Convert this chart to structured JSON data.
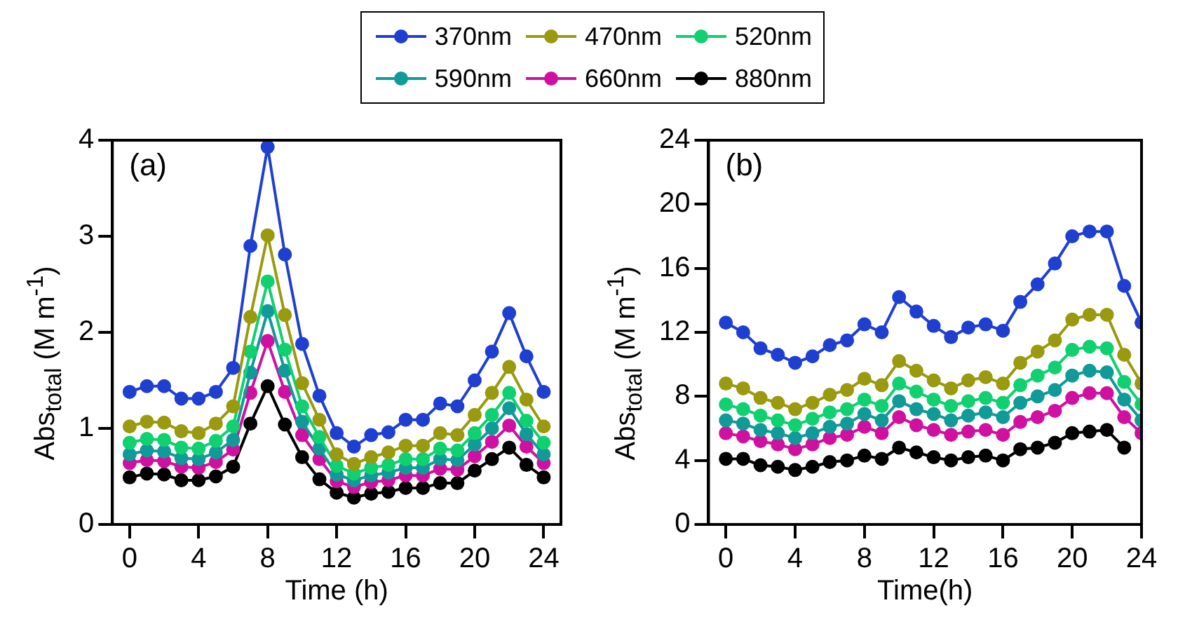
{
  "chart_data": [
    {
      "type": "line",
      "xlabel": "Time (h)",
      "ylabel": "Abs$_{total}$ (M m$^{-1}$)",
      "annotations": [
        "(a)"
      ],
      "x": [
        0,
        1,
        2,
        3,
        4,
        5,
        6,
        7,
        8,
        9,
        10,
        11,
        12,
        13,
        14,
        15,
        16,
        17,
        18,
        19,
        20,
        21,
        22,
        23,
        24
      ],
      "xlim": [
        -1,
        25
      ],
      "xticks": [
        0,
        4,
        8,
        12,
        16,
        20,
        24
      ],
      "ylim": [
        0,
        4
      ],
      "yticks": [
        0,
        1,
        2,
        3,
        4
      ],
      "grid": false,
      "legend": "top",
      "marker": "circle",
      "line_style": "solid",
      "series": [
        {
          "name": "370nm",
          "color": "#1f3fd0",
          "values": [
            1.38,
            1.44,
            1.44,
            1.31,
            1.31,
            1.38,
            1.63,
            2.9,
            3.93,
            2.81,
            1.88,
            1.34,
            0.95,
            0.81,
            0.93,
            0.96,
            1.09,
            1.09,
            1.26,
            1.23,
            1.5,
            1.8,
            2.2,
            1.75,
            1.38
          ]
        },
        {
          "name": "470nm",
          "color": "#9a9a10",
          "values": [
            1.02,
            1.07,
            1.06,
            0.97,
            0.95,
            1.05,
            1.23,
            2.16,
            3.01,
            2.18,
            1.47,
            1.09,
            0.73,
            0.63,
            0.7,
            0.75,
            0.82,
            0.82,
            0.95,
            0.93,
            1.14,
            1.37,
            1.64,
            1.3,
            1.02
          ]
        },
        {
          "name": "520nm",
          "color": "#10d070",
          "values": [
            0.85,
            0.89,
            0.88,
            0.8,
            0.79,
            0.87,
            1.02,
            1.8,
            2.53,
            1.82,
            1.23,
            0.91,
            0.61,
            0.53,
            0.59,
            0.62,
            0.68,
            0.68,
            0.79,
            0.77,
            0.95,
            1.14,
            1.37,
            1.08,
            0.85
          ]
        },
        {
          "name": "590nm",
          "color": "#109a98",
          "values": [
            0.73,
            0.77,
            0.76,
            0.69,
            0.68,
            0.75,
            0.88,
            1.58,
            2.22,
            1.6,
            1.07,
            0.79,
            0.52,
            0.46,
            0.51,
            0.54,
            0.59,
            0.59,
            0.68,
            0.67,
            0.83,
            1.0,
            1.21,
            0.94,
            0.73
          ]
        },
        {
          "name": "660nm",
          "color": "#d010a0",
          "values": [
            0.64,
            0.67,
            0.66,
            0.6,
            0.59,
            0.65,
            0.78,
            1.37,
            1.91,
            1.38,
            0.93,
            0.68,
            0.45,
            0.39,
            0.44,
            0.46,
            0.51,
            0.51,
            0.58,
            0.57,
            0.71,
            0.86,
            1.03,
            0.81,
            0.64
          ]
        },
        {
          "name": "880nm",
          "color": "#000000",
          "values": [
            0.49,
            0.53,
            0.52,
            0.46,
            0.46,
            0.5,
            0.6,
            1.05,
            1.44,
            1.04,
            0.7,
            0.47,
            0.33,
            0.28,
            0.32,
            0.34,
            0.38,
            0.38,
            0.43,
            0.43,
            0.56,
            0.68,
            0.8,
            0.62,
            0.49
          ]
        }
      ]
    },
    {
      "type": "line",
      "xlabel": "Time(h)",
      "ylabel": "Abs$_{total}$ (M m$^{-1}$)",
      "annotations": [
        "(b)"
      ],
      "x": [
        0,
        1,
        2,
        3,
        4,
        5,
        6,
        7,
        8,
        9,
        10,
        11,
        12,
        13,
        14,
        15,
        16,
        17,
        18,
        19,
        20,
        21,
        22,
        23,
        24
      ],
      "xlim": [
        -1,
        24
      ],
      "xticks": [
        0,
        4,
        8,
        12,
        16,
        20,
        24
      ],
      "ylim": [
        0,
        24
      ],
      "yticks": [
        0,
        4,
        8,
        12,
        16,
        20,
        24
      ],
      "grid": false,
      "marker": "circle",
      "line_style": "solid",
      "series": [
        {
          "color": "#1f3fd0",
          "values": [
            12.6,
            12.0,
            11.0,
            10.6,
            10.1,
            10.5,
            11.2,
            11.5,
            12.5,
            12.0,
            14.2,
            13.3,
            12.4,
            11.7,
            12.3,
            12.5,
            12.1,
            13.9,
            15.0,
            16.3,
            18.0,
            18.3,
            18.3,
            14.9,
            12.6
          ]
        },
        {
          "color": "#9a9a10",
          "values": [
            8.8,
            8.5,
            7.9,
            7.6,
            7.2,
            7.6,
            8.1,
            8.4,
            9.1,
            8.7,
            10.2,
            9.6,
            9.0,
            8.5,
            9.0,
            9.2,
            8.8,
            10.1,
            10.8,
            11.5,
            12.8,
            13.1,
            13.1,
            10.6,
            8.8
          ]
        },
        {
          "color": "#10d070",
          "values": [
            7.5,
            7.2,
            6.8,
            6.5,
            6.2,
            6.6,
            7.0,
            7.2,
            7.8,
            7.4,
            8.8,
            8.3,
            7.8,
            7.4,
            7.7,
            7.9,
            7.6,
            8.7,
            9.3,
            9.8,
            10.9,
            11.1,
            11.0,
            8.9,
            7.5
          ]
        },
        {
          "color": "#109a98",
          "values": [
            6.5,
            6.3,
            5.9,
            5.7,
            5.4,
            5.7,
            6.1,
            6.3,
            6.9,
            6.5,
            7.7,
            7.2,
            6.9,
            6.5,
            6.8,
            7.0,
            6.7,
            7.6,
            8.0,
            8.4,
            9.3,
            9.6,
            9.5,
            7.8,
            6.5
          ]
        },
        {
          "color": "#d010a0",
          "values": [
            5.7,
            5.5,
            5.2,
            5.0,
            4.7,
            5.0,
            5.4,
            5.6,
            6.1,
            5.7,
            6.7,
            6.2,
            5.9,
            5.6,
            5.8,
            5.9,
            5.6,
            6.4,
            6.7,
            7.1,
            7.9,
            8.2,
            8.2,
            6.7,
            5.7
          ]
        },
        {
          "color": "#000000",
          "values": [
            4.1,
            4.1,
            3.7,
            3.6,
            3.4,
            3.6,
            3.9,
            4.0,
            4.3,
            4.1,
            4.8,
            4.5,
            4.2,
            4.0,
            4.2,
            4.3,
            4.0,
            4.7,
            4.8,
            5.1,
            5.7,
            5.8,
            5.9,
            4.8,
            null
          ]
        }
      ]
    }
  ]
}
